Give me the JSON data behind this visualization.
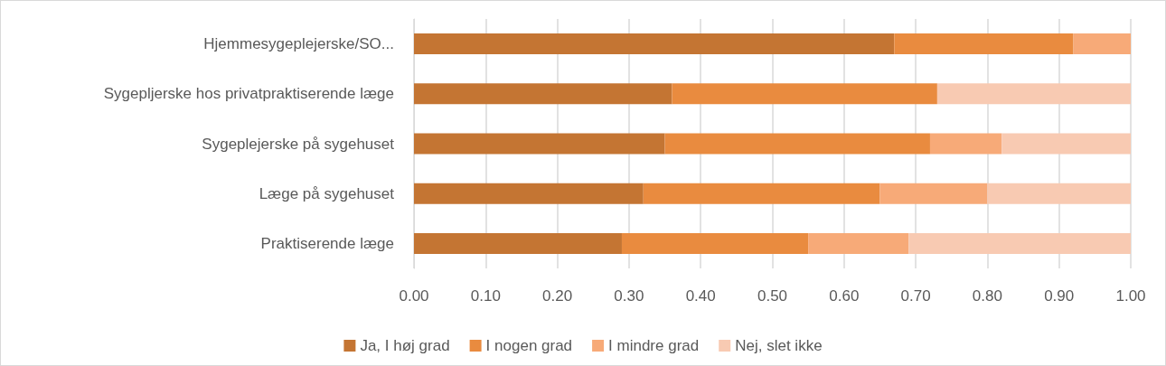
{
  "chart_data": {
    "type": "bar",
    "orientation": "horizontal",
    "stacked": true,
    "categories": [
      "Hjemmesygeplejerske/SO...",
      "Sygepljerske hos privatpraktiserende læge",
      "Sygeplejerske på sygehuset",
      "Læge på sygehuset",
      "Praktiserende læge"
    ],
    "series": [
      {
        "name": "Ja, I høj grad",
        "color": "#c47533",
        "values": [
          0.67,
          0.36,
          0.35,
          0.32,
          0.29
        ]
      },
      {
        "name": "I nogen grad",
        "color": "#e98b3f",
        "values": [
          0.25,
          0.37,
          0.37,
          0.33,
          0.26
        ]
      },
      {
        "name": "I mindre grad",
        "color": "#f7aa78",
        "values": [
          0.08,
          0,
          0.1,
          0.15,
          0.14
        ]
      },
      {
        "name": "Nej, slet ikke",
        "color": "#f8cab2",
        "values": [
          0,
          0.27,
          0.18,
          0.2,
          0.31
        ]
      }
    ],
    "xlim": [
      0,
      1
    ],
    "xticks": [
      {
        "value": 0,
        "label": "0.00"
      },
      {
        "value": 0.1,
        "label": "0.10"
      },
      {
        "value": 0.2,
        "label": "0.20"
      },
      {
        "value": 0.3,
        "label": "0.30"
      },
      {
        "value": 0.4,
        "label": "0.40"
      },
      {
        "value": 0.5,
        "label": "0.50"
      },
      {
        "value": 0.6,
        "label": "0.60"
      },
      {
        "value": 0.7,
        "label": "0.70"
      },
      {
        "value": 0.8,
        "label": "0.80"
      },
      {
        "value": 0.9,
        "label": "0.90"
      },
      {
        "value": 1,
        "label": "1.00"
      }
    ],
    "grid": "x",
    "legend": "bottom"
  }
}
